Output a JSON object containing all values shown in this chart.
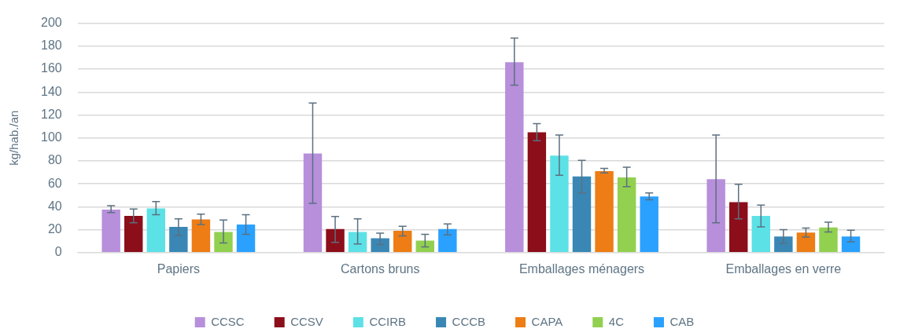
{
  "chart_data": {
    "type": "bar",
    "ylabel": "kg/hab./an",
    "categories": [
      "Papiers",
      "Cartons bruns",
      "Emballages ménagers",
      "Emballages en verre"
    ],
    "series": [
      {
        "name": "CCSC",
        "color": "#b78fdb",
        "values": [
          37.5,
          86.5,
          166,
          64
        ],
        "errors": [
          [
            35,
            41
          ],
          [
            43,
            130.5
          ],
          [
            146,
            187
          ],
          [
            26,
            102.5
          ]
        ]
      },
      {
        "name": "CCSV",
        "color": "#8b0e1a",
        "values": [
          32,
          20.5,
          105,
          44
        ],
        "errors": [
          [
            26,
            38
          ],
          [
            9,
            31.5
          ],
          [
            97.5,
            112.5
          ],
          [
            29.5,
            59.5
          ]
        ]
      },
      {
        "name": "CCIRB",
        "color": "#5ce1e6",
        "values": [
          38.5,
          18,
          84.5,
          32
        ],
        "errors": [
          [
            33,
            44.5
          ],
          [
            7.5,
            29.5
          ],
          [
            67.5,
            102.5
          ],
          [
            22.5,
            41.5
          ]
        ]
      },
      {
        "name": "CCCB",
        "color": "#3a87b5",
        "values": [
          22.5,
          12.5,
          66.5,
          14
        ],
        "errors": [
          [
            15,
            29.5
          ],
          [
            7,
            17
          ],
          [
            52,
            80.5
          ],
          [
            8,
            20
          ]
        ]
      },
      {
        "name": "CAPA",
        "color": "#ed7d14",
        "values": [
          29,
          19,
          71,
          17.5
        ],
        "errors": [
          [
            24.5,
            33.5
          ],
          [
            14.5,
            23
          ],
          [
            69.5,
            73.5
          ],
          [
            13.5,
            21.5
          ]
        ]
      },
      {
        "name": "4C",
        "color": "#92d050",
        "values": [
          18,
          10.5,
          65.5,
          22
        ],
        "errors": [
          [
            8.5,
            28.5
          ],
          [
            5,
            16
          ],
          [
            57.5,
            74.5
          ],
          [
            18,
            26.5
          ]
        ]
      },
      {
        "name": "CAB",
        "color": "#2aa1ff",
        "values": [
          24.5,
          20.5,
          49,
          14
        ],
        "errors": [
          [
            16,
            33
          ],
          [
            15.5,
            25
          ],
          [
            46,
            52
          ],
          [
            9.5,
            19.5
          ]
        ]
      }
    ],
    "ylim": [
      0,
      200
    ],
    "yticks": [
      0,
      20,
      40,
      60,
      80,
      100,
      120,
      140,
      160,
      180,
      200
    ],
    "grid": "y",
    "legend": "bottom"
  }
}
